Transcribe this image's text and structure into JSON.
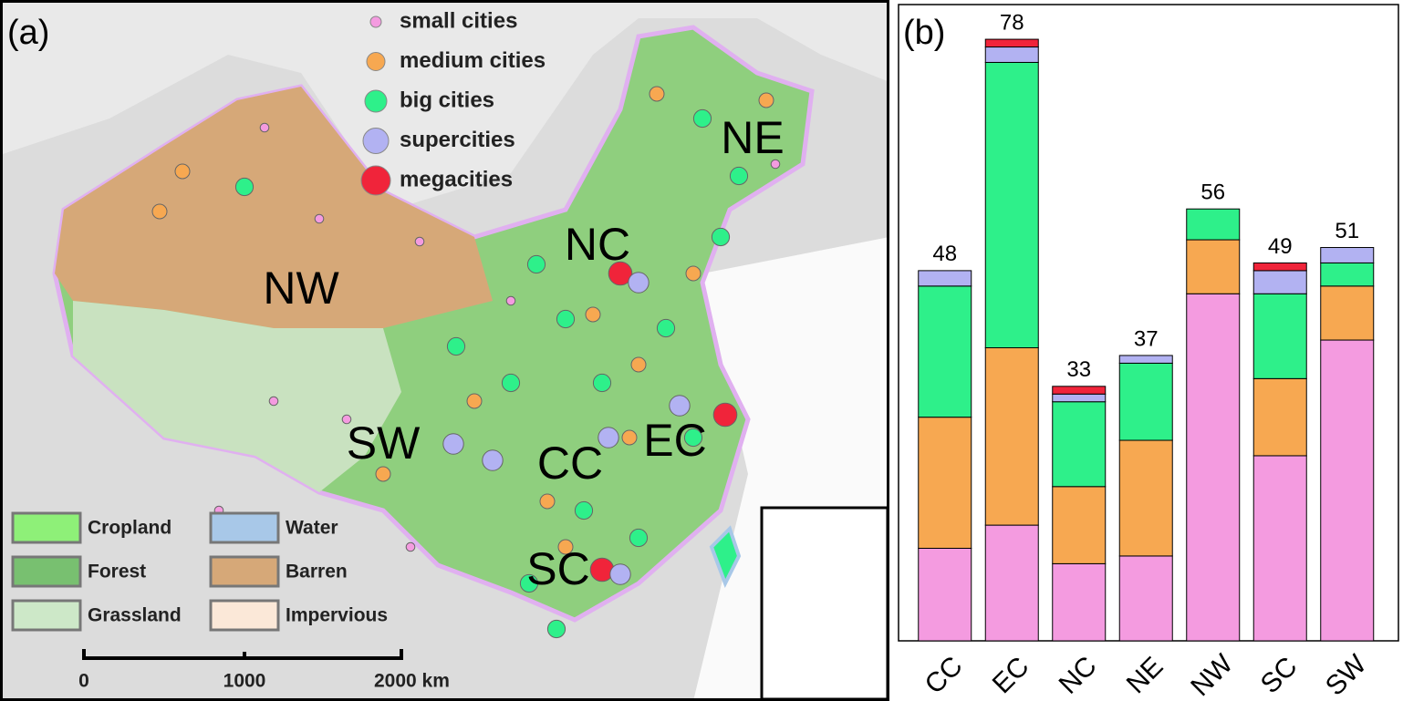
{
  "chart_data": {
    "type": "stacked_bar",
    "panel_label": "(b)",
    "categories": [
      "CC",
      "EC",
      "NC",
      "NE",
      "NW",
      "SC",
      "SW"
    ],
    "series": [
      {
        "name": "small cities",
        "color": "#f49be0",
        "values": [
          12,
          15,
          10,
          11,
          45,
          24,
          39
        ]
      },
      {
        "name": "medium cities",
        "color": "#f7a851",
        "values": [
          17,
          23,
          10,
          15,
          7,
          10,
          7
        ]
      },
      {
        "name": "big cities",
        "color": "#2ef08a",
        "values": [
          17,
          37,
          11,
          10,
          4,
          11,
          3
        ]
      },
      {
        "name": "supercities",
        "color": "#b2b2f2",
        "values": [
          2,
          2,
          1,
          1,
          0,
          3,
          2
        ]
      },
      {
        "name": "megacities",
        "color": "#f0243a",
        "values": [
          0,
          1,
          1,
          0,
          0,
          1,
          0
        ]
      }
    ],
    "totals": [
      48,
      78,
      33,
      37,
      56,
      49,
      51
    ],
    "ylim": [
      0,
      82.5
    ]
  },
  "map": {
    "panel_label": "(a)",
    "regions": [
      "NE",
      "NC",
      "NW",
      "SW",
      "CC",
      "EC",
      "SC"
    ],
    "land_cover": [
      {
        "name": "Cropland",
        "color": "#8ef078"
      },
      {
        "name": "Forest",
        "color": "#78c070"
      },
      {
        "name": "Grassland",
        "color": "#cde8c8"
      },
      {
        "name": "Water",
        "color": "#a8c8e8"
      },
      {
        "name": "Barren",
        "color": "#d6a878"
      },
      {
        "name": "Impervious",
        "color": "#fbe8d8"
      }
    ],
    "scale_labels": [
      "0",
      "1000",
      "2000 km"
    ]
  }
}
